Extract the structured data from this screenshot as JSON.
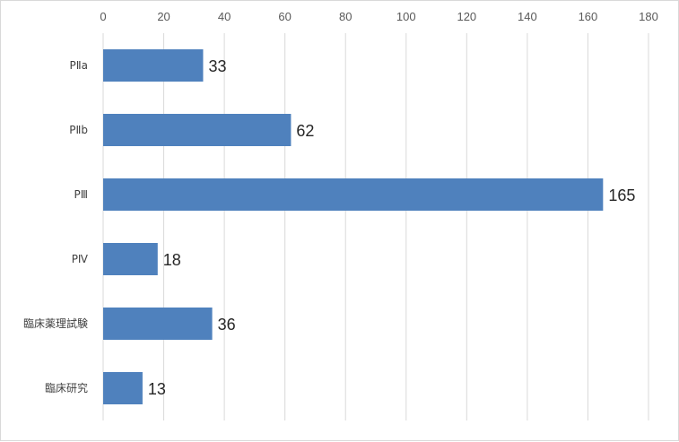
{
  "chart_data": {
    "type": "bar",
    "orientation": "horizontal",
    "title": "",
    "xlabel": "",
    "ylabel": "",
    "categories": [
      "PⅡa",
      "PⅡb",
      "PⅢ",
      "PⅣ",
      "臨床薬理試験",
      "臨床研究"
    ],
    "values": [
      33,
      62,
      165,
      18,
      36,
      13
    ],
    "xlim": [
      0,
      180
    ],
    "ticks": [
      0,
      20,
      40,
      60,
      80,
      100,
      120,
      140,
      160,
      180
    ],
    "tick_labels": [
      "0",
      "20",
      "40",
      "60",
      "80",
      "100",
      "120",
      "140",
      "160",
      "180"
    ],
    "axis_position": "top",
    "grid": true,
    "legend": "none",
    "bar_color": "#4f81bd",
    "grid_color": "#d9d9d9",
    "data_labels": true
  }
}
